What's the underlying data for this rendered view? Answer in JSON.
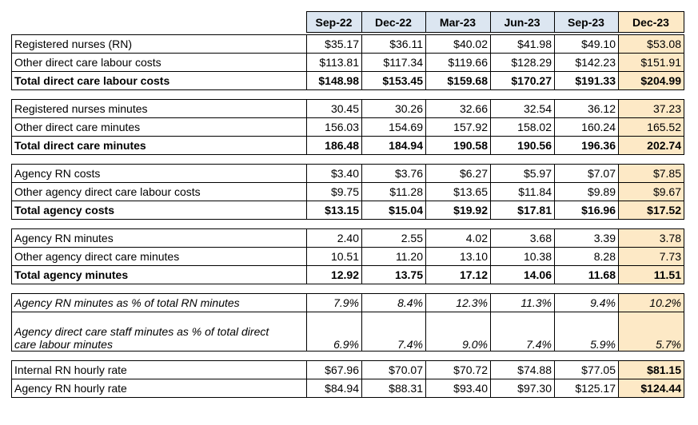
{
  "header": {
    "columns": [
      "Sep-22",
      "Dec-22",
      "Mar-23",
      "Jun-23",
      "Sep-23",
      "Dec-23"
    ]
  },
  "groups": [
    {
      "rows": [
        {
          "label": "Registered nurses (RN)",
          "values": [
            "$35.17",
            "$36.11",
            "$40.02",
            "$41.98",
            "$49.10",
            "$53.08"
          ]
        },
        {
          "label": "Other direct care labour costs",
          "values": [
            "$113.81",
            "$117.34",
            "$119.66",
            "$128.29",
            "$142.23",
            "$151.91"
          ]
        },
        {
          "label": "Total direct care labour costs",
          "values": [
            "$148.98",
            "$153.45",
            "$159.68",
            "$170.27",
            "$191.33",
            "$204.99"
          ]
        }
      ]
    },
    {
      "rows": [
        {
          "label": "Registered nurses minutes",
          "values": [
            "30.45",
            "30.26",
            "32.66",
            "32.54",
            "36.12",
            "37.23"
          ]
        },
        {
          "label": "Other direct care minutes",
          "values": [
            "156.03",
            "154.69",
            "157.92",
            "158.02",
            "160.24",
            "165.52"
          ]
        },
        {
          "label": "Total direct care minutes",
          "values": [
            "186.48",
            "184.94",
            "190.58",
            "190.56",
            "196.36",
            "202.74"
          ]
        }
      ]
    },
    {
      "rows": [
        {
          "label": "Agency RN costs",
          "values": [
            "$3.40",
            "$3.76",
            "$6.27",
            "$5.97",
            "$7.07",
            "$7.85"
          ]
        },
        {
          "label": "Other agency direct care labour costs",
          "values": [
            "$9.75",
            "$11.28",
            "$13.65",
            "$11.84",
            "$9.89",
            "$9.67"
          ]
        },
        {
          "label": "Total agency costs",
          "values": [
            "$13.15",
            "$15.04",
            "$19.92",
            "$17.81",
            "$16.96",
            "$17.52"
          ]
        }
      ]
    },
    {
      "rows": [
        {
          "label": "Agency RN minutes",
          "values": [
            "2.40",
            "2.55",
            "4.02",
            "3.68",
            "3.39",
            "3.78"
          ]
        },
        {
          "label": "Other agency direct care minutes",
          "values": [
            "10.51",
            "11.20",
            "13.10",
            "10.38",
            "8.28",
            "7.73"
          ]
        },
        {
          "label": "Total agency minutes",
          "values": [
            "12.92",
            "13.75",
            "17.12",
            "14.06",
            "11.68",
            "11.51"
          ]
        }
      ]
    },
    {
      "rows": [
        {
          "label": "Agency RN minutes as % of total RN minutes",
          "values": [
            "7.9%",
            "8.4%",
            "12.3%",
            "11.3%",
            "9.4%",
            "10.2%"
          ]
        },
        {
          "label": "Agency direct care staff minutes as % of total direct care labour minutes",
          "values": [
            "6.9%",
            "7.4%",
            "9.0%",
            "7.4%",
            "5.9%",
            "5.7%"
          ]
        }
      ]
    },
    {
      "rows": [
        {
          "label": "Internal RN hourly rate",
          "values": [
            "$67.96",
            "$70.07",
            "$70.72",
            "$74.88",
            "$77.05",
            "$81.15"
          ]
        },
        {
          "label": "Agency RN hourly rate",
          "values": [
            "$84.94",
            "$88.31",
            "$93.40",
            "$97.30",
            "$125.17",
            "$124.44"
          ]
        }
      ]
    }
  ]
}
